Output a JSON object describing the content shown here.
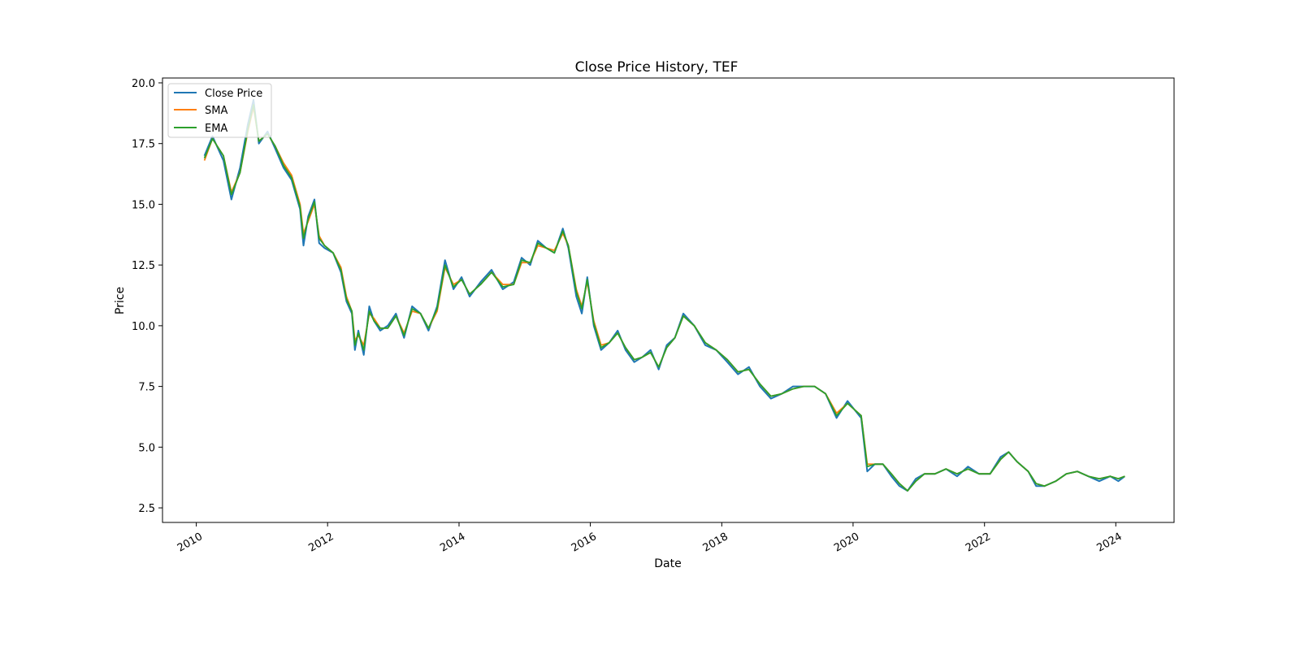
{
  "chart_data": {
    "type": "line",
    "title": "Close Price History, TEF",
    "xlabel": "Date",
    "ylabel": "Price",
    "xlim": [
      "2009-06-27",
      "2024-11-20"
    ],
    "ylim": [
      1.9,
      20.2
    ],
    "x_ticks": [
      "2010",
      "2012",
      "2014",
      "2016",
      "2018",
      "2020",
      "2022",
      "2024"
    ],
    "y_ticks": [
      "2.5",
      "5.0",
      "7.5",
      "10.0",
      "12.5",
      "15.0",
      "17.5",
      "20.0"
    ],
    "grid": false,
    "legend_position": "upper left",
    "colors": {
      "close": "#1f77b4",
      "sma": "#ff7f0e",
      "ema": "#2ca02c"
    },
    "series": [
      {
        "name": "Close Price",
        "color": "#1f77b4"
      },
      {
        "name": "SMA",
        "color": "#ff7f0e"
      },
      {
        "name": "EMA",
        "color": "#2ca02c"
      }
    ],
    "x": [
      "2010-02-15",
      "2010-04-01",
      "2010-06-01",
      "2010-07-15",
      "2010-09-01",
      "2010-10-15",
      "2010-11-15",
      "2010-12-15",
      "2011-02-01",
      "2011-03-15",
      "2011-05-01",
      "2011-06-15",
      "2011-08-01",
      "2011-08-20",
      "2011-09-15",
      "2011-10-20",
      "2011-11-15",
      "2011-12-15",
      "2012-02-01",
      "2012-03-15",
      "2012-04-15",
      "2012-05-15",
      "2012-06-01",
      "2012-06-20",
      "2012-07-20",
      "2012-08-20",
      "2012-09-15",
      "2012-10-20",
      "2012-12-01",
      "2013-01-15",
      "2013-03-01",
      "2013-04-15",
      "2013-06-01",
      "2013-07-15",
      "2013-09-01",
      "2013-10-15",
      "2013-12-01",
      "2014-01-15",
      "2014-03-01",
      "2014-05-01",
      "2014-07-01",
      "2014-09-01",
      "2014-11-01",
      "2014-12-15",
      "2015-02-01",
      "2015-03-15",
      "2015-05-01",
      "2015-06-15",
      "2015-08-01",
      "2015-09-01",
      "2015-10-15",
      "2015-11-15",
      "2015-12-15",
      "2016-01-20",
      "2016-03-01",
      "2016-04-15",
      "2016-06-01",
      "2016-07-15",
      "2016-09-01",
      "2016-10-15",
      "2016-12-01",
      "2017-01-15",
      "2017-03-01",
      "2017-04-15",
      "2017-06-01",
      "2017-08-01",
      "2017-10-01",
      "2017-12-01",
      "2018-02-01",
      "2018-04-01",
      "2018-06-01",
      "2018-08-01",
      "2018-10-01",
      "2018-12-01",
      "2019-02-01",
      "2019-04-01",
      "2019-06-01",
      "2019-08-01",
      "2019-10-01",
      "2019-12-01",
      "2020-02-15",
      "2020-03-20",
      "2020-05-01",
      "2020-06-15",
      "2020-08-01",
      "2020-09-15",
      "2020-10-30",
      "2020-12-15",
      "2021-02-01",
      "2021-04-01",
      "2021-06-01",
      "2021-08-01",
      "2021-10-01",
      "2021-12-01",
      "2022-02-01",
      "2022-04-01",
      "2022-05-15",
      "2022-07-01",
      "2022-09-01",
      "2022-10-15",
      "2022-12-01",
      "2023-02-01",
      "2023-04-01",
      "2023-06-01",
      "2023-08-01",
      "2023-10-01",
      "2023-12-01",
      "2024-01-15",
      "2024-02-20"
    ],
    "close": [
      17.0,
      17.8,
      16.8,
      15.2,
      16.5,
      18.3,
      19.3,
      17.5,
      18.0,
      17.3,
      16.5,
      16.0,
      14.8,
      13.3,
      14.5,
      15.2,
      13.4,
      13.2,
      13.0,
      12.2,
      11.0,
      10.5,
      9.0,
      9.8,
      8.8,
      10.8,
      10.2,
      9.8,
      10.0,
      10.5,
      9.5,
      10.8,
      10.5,
      9.8,
      10.8,
      12.7,
      11.5,
      12.0,
      11.2,
      11.8,
      12.3,
      11.5,
      11.8,
      12.8,
      12.5,
      13.5,
      13.2,
      13.0,
      14.0,
      13.2,
      11.2,
      10.5,
      12.0,
      10.0,
      9.0,
      9.3,
      9.8,
      9.0,
      8.5,
      8.7,
      9.0,
      8.2,
      9.2,
      9.5,
      10.5,
      10.0,
      9.2,
      9.0,
      8.5,
      8.0,
      8.3,
      7.5,
      7.0,
      7.2,
      7.5,
      7.5,
      7.5,
      7.2,
      6.2,
      6.9,
      6.2,
      4.0,
      4.3,
      4.3,
      3.8,
      3.4,
      3.2,
      3.7,
      3.9,
      3.9,
      4.1,
      3.8,
      4.2,
      3.9,
      3.9,
      4.6,
      4.8,
      4.4,
      4.0,
      3.4,
      3.4,
      3.6,
      3.9,
      4.0,
      3.8,
      3.6,
      3.8,
      3.6,
      3.8
    ],
    "sma": [
      16.8,
      17.7,
      17.0,
      15.5,
      16.3,
      18.0,
      19.0,
      17.6,
      17.9,
      17.4,
      16.7,
      16.2,
      15.0,
      13.8,
      14.3,
      15.0,
      13.7,
      13.3,
      13.0,
      12.4,
      11.2,
      10.6,
      9.4,
      9.6,
      9.2,
      10.5,
      10.3,
      9.9,
      9.9,
      10.4,
      9.7,
      10.6,
      10.5,
      9.9,
      10.6,
      12.4,
      11.7,
      11.9,
      11.3,
      11.7,
      12.2,
      11.7,
      11.7,
      12.6,
      12.6,
      13.3,
      13.2,
      13.1,
      13.8,
      13.3,
      11.5,
      10.8,
      11.8,
      10.2,
      9.2,
      9.3,
      9.7,
      9.1,
      8.6,
      8.7,
      8.9,
      8.3,
      9.1,
      9.5,
      10.4,
      10.0,
      9.3,
      9.0,
      8.6,
      8.1,
      8.2,
      7.6,
      7.1,
      7.2,
      7.4,
      7.5,
      7.5,
      7.2,
      6.4,
      6.8,
      6.3,
      4.3,
      4.3,
      4.3,
      3.9,
      3.5,
      3.2,
      3.6,
      3.9,
      3.9,
      4.1,
      3.9,
      4.1,
      3.9,
      3.9,
      4.5,
      4.8,
      4.4,
      4.0,
      3.5,
      3.4,
      3.6,
      3.9,
      4.0,
      3.8,
      3.7,
      3.8,
      3.7,
      3.8
    ],
    "ema": [
      16.9,
      17.7,
      17.0,
      15.4,
      16.3,
      18.1,
      19.1,
      17.6,
      17.9,
      17.4,
      16.6,
      16.1,
      14.9,
      13.6,
      14.4,
      15.1,
      13.6,
      13.3,
      13.0,
      12.3,
      11.1,
      10.6,
      9.2,
      9.7,
      9.0,
      10.6,
      10.2,
      9.9,
      9.9,
      10.4,
      9.6,
      10.7,
      10.5,
      9.9,
      10.7,
      12.5,
      11.6,
      11.9,
      11.3,
      11.7,
      12.2,
      11.6,
      11.7,
      12.7,
      12.6,
      13.4,
      13.2,
      13.0,
      13.9,
      13.3,
      11.4,
      10.7,
      11.9,
      10.1,
      9.1,
      9.3,
      9.7,
      9.1,
      8.6,
      8.7,
      8.9,
      8.3,
      9.1,
      9.5,
      10.4,
      10.0,
      9.3,
      9.0,
      8.6,
      8.1,
      8.2,
      7.6,
      7.1,
      7.2,
      7.4,
      7.5,
      7.5,
      7.2,
      6.3,
      6.8,
      6.3,
      4.2,
      4.3,
      4.3,
      3.9,
      3.5,
      3.2,
      3.6,
      3.9,
      3.9,
      4.1,
      3.9,
      4.1,
      3.9,
      3.9,
      4.5,
      4.8,
      4.4,
      4.0,
      3.5,
      3.4,
      3.6,
      3.9,
      4.0,
      3.8,
      3.7,
      3.8,
      3.7,
      3.8
    ]
  }
}
